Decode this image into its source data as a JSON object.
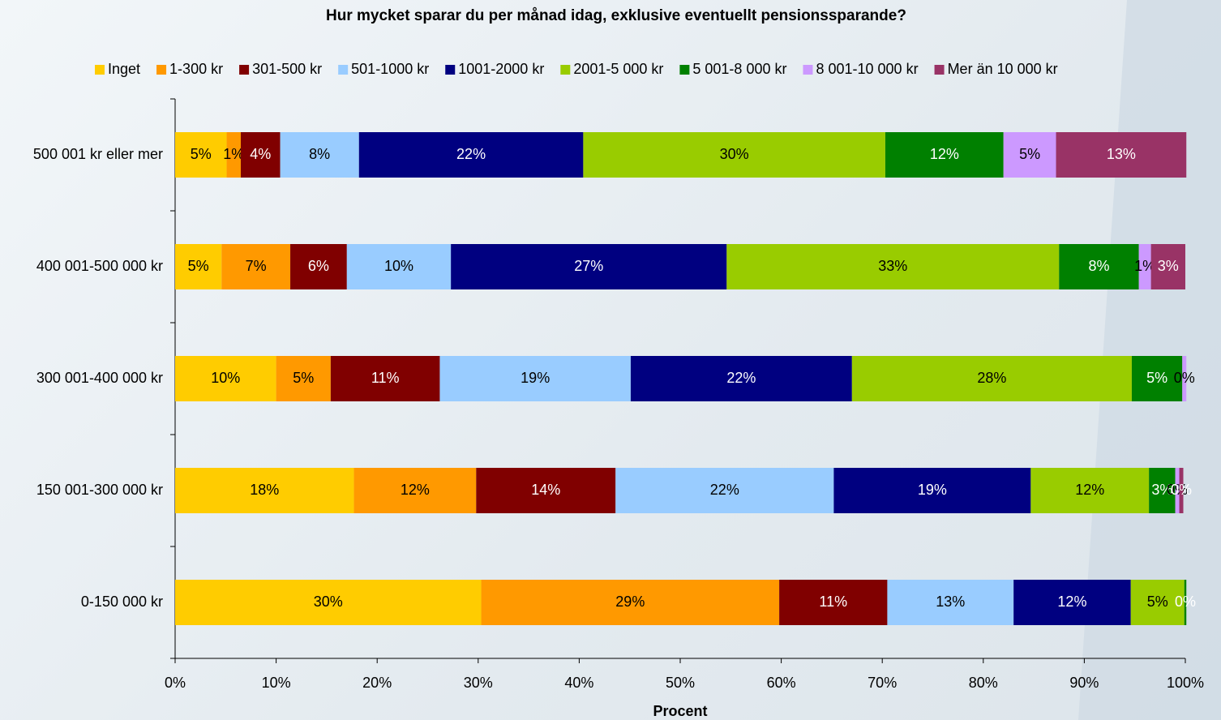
{
  "chart_data": {
    "type": "stacked_bar_horizontal",
    "title": "Hur mycket sparar du per månad idag, exklusive eventuellt pensionssparande?",
    "xlabel": "Procent",
    "categories": [
      "500 001 kr eller mer",
      "400 001-500 000 kr",
      "300 001-400 000 kr",
      "150 001-300 000 kr",
      "0-150 000 kr"
    ],
    "series": [
      {
        "name": "Inget",
        "color": "#FFCC00",
        "values": [
          5.1,
          4.6,
          10.0,
          17.7,
          30.3
        ],
        "value_labels": [
          "5%",
          "5%",
          "10%",
          "18%",
          "30%"
        ]
      },
      {
        "name": "1-300 kr",
        "color": "#FF9900",
        "values": [
          1.4,
          6.8,
          5.4,
          12.1,
          29.5
        ],
        "value_labels": [
          "1%",
          "7%",
          "5%",
          "12%",
          "29%"
        ]
      },
      {
        "name": "301-500 kr",
        "color": "#800000",
        "values": [
          3.9,
          5.6,
          10.8,
          13.8,
          10.7
        ],
        "value_labels": [
          "4%",
          "6%",
          "11%",
          "14%",
          "11%"
        ]
      },
      {
        "name": "501-1000 kr",
        "color": "#99CCFF",
        "values": [
          7.8,
          10.3,
          18.9,
          21.6,
          12.5
        ],
        "value_labels": [
          "8%",
          "10%",
          "19%",
          "22%",
          "13%"
        ]
      },
      {
        "name": "1001-2000 kr",
        "color": "#000080",
        "values": [
          22.2,
          27.3,
          21.9,
          19.5,
          11.6
        ],
        "value_labels": [
          "22%",
          "27%",
          "22%",
          "19%",
          "12%"
        ]
      },
      {
        "name": "2001-5 000 kr",
        "color": "#99CC00",
        "values": [
          29.9,
          32.9,
          27.7,
          11.7,
          5.3
        ],
        "value_labels": [
          "30%",
          "33%",
          "28%",
          "12%",
          "5%"
        ]
      },
      {
        "name": "5 001-8 000 kr",
        "color": "#008000",
        "values": [
          11.7,
          7.9,
          5.0,
          2.6,
          0.2
        ],
        "value_labels": [
          "12%",
          "8%",
          "5%",
          "3%",
          "0%"
        ]
      },
      {
        "name": "8 001-10 000 kr",
        "color": "#CC99FF",
        "values": [
          5.2,
          1.2,
          0.4,
          0.4,
          null
        ],
        "value_labels": [
          "5%",
          "1%",
          "0%",
          "0%",
          null
        ]
      },
      {
        "name": "Mer än 10 000 kr",
        "color": "#993366",
        "values": [
          12.9,
          3.4,
          null,
          0.4,
          null
        ],
        "value_labels": [
          "13%",
          "3%",
          null,
          "0%",
          null
        ]
      }
    ],
    "xlim": [
      0,
      100
    ],
    "xticks": [
      {
        "value": 0,
        "label": "0%"
      },
      {
        "value": 10,
        "label": "10%"
      },
      {
        "value": 20,
        "label": "20%"
      },
      {
        "value": 30,
        "label": "30%"
      },
      {
        "value": 40,
        "label": "40%"
      },
      {
        "value": 50,
        "label": "50%"
      },
      {
        "value": 60,
        "label": "60%"
      },
      {
        "value": 70,
        "label": "70%"
      },
      {
        "value": 80,
        "label": "80%"
      },
      {
        "value": 90,
        "label": "90%"
      },
      {
        "value": 100,
        "label": "100%"
      }
    ],
    "legend": "top"
  }
}
